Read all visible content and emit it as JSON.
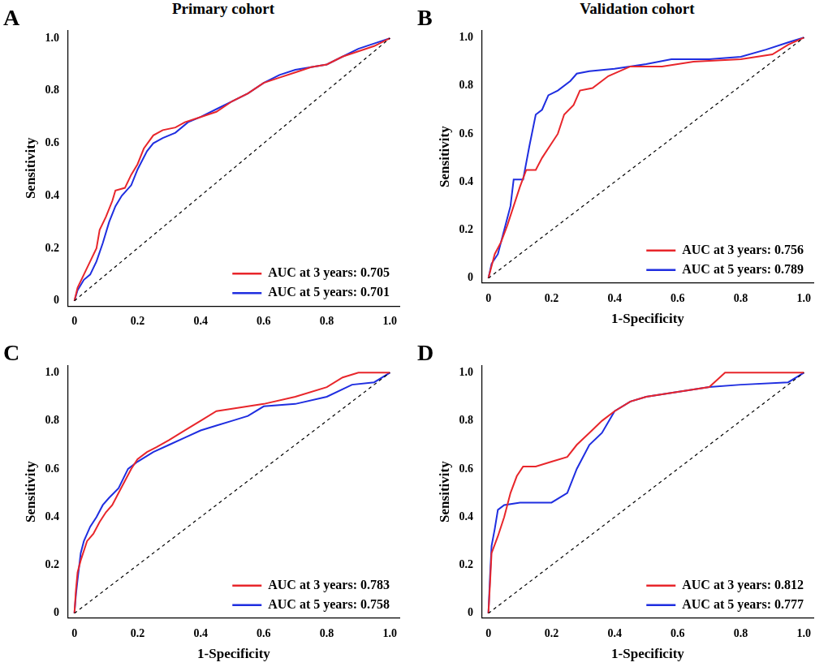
{
  "chart_data": [
    {
      "type": "line",
      "panel": "A",
      "title": "Primary cohort",
      "y_label": "Sensitivity",
      "xlim": [
        -0.02,
        1.03
      ],
      "ylim": [
        -0.02,
        1.03
      ],
      "xticks": [
        0,
        0.2,
        0.4,
        0.6,
        0.8,
        {
          "value": 1,
          "label": "1.0"
        }
      ],
      "yticks": [
        0,
        0.2,
        0.4,
        0.6,
        0.8,
        {
          "value": 1,
          "label": "1.0"
        }
      ],
      "grid": false,
      "legend": "lower right",
      "diagonal": {
        "x": [
          0,
          1
        ],
        "values": [
          0,
          1
        ],
        "color": "#000000",
        "line_style": "dashed"
      },
      "series": [
        {
          "name": "AUC at 3 years: 0.705",
          "color": "#e8262b",
          "x": [
            0,
            0.01,
            0.03,
            0.05,
            0.07,
            0.08,
            0.1,
            0.12,
            0.13,
            0.16,
            0.18,
            0.2,
            0.22,
            0.25,
            0.28,
            0.32,
            0.35,
            0.4,
            0.45,
            0.5,
            0.55,
            0.6,
            0.65,
            0.7,
            0.75,
            0.8,
            0.85,
            0.9,
            0.95,
            1
          ],
          "values": [
            0,
            0.05,
            0.1,
            0.15,
            0.2,
            0.27,
            0.32,
            0.38,
            0.42,
            0.43,
            0.48,
            0.52,
            0.58,
            0.63,
            0.65,
            0.66,
            0.68,
            0.7,
            0.72,
            0.76,
            0.79,
            0.83,
            0.85,
            0.87,
            0.89,
            0.9,
            0.93,
            0.95,
            0.97,
            1
          ]
        },
        {
          "name": "AUC at 5 years: 0.701",
          "color": "#1f2ee0",
          "x": [
            0,
            0.01,
            0.03,
            0.05,
            0.07,
            0.09,
            0.11,
            0.13,
            0.15,
            0.18,
            0.2,
            0.23,
            0.25,
            0.28,
            0.32,
            0.36,
            0.4,
            0.45,
            0.5,
            0.55,
            0.6,
            0.65,
            0.7,
            0.75,
            0.8,
            0.85,
            0.9,
            0.95,
            1
          ],
          "values": [
            0,
            0.04,
            0.08,
            0.1,
            0.15,
            0.22,
            0.3,
            0.36,
            0.4,
            0.44,
            0.5,
            0.57,
            0.6,
            0.62,
            0.64,
            0.68,
            0.7,
            0.73,
            0.76,
            0.79,
            0.83,
            0.86,
            0.88,
            0.89,
            0.9,
            0.93,
            0.96,
            0.98,
            1
          ]
        }
      ]
    },
    {
      "type": "line",
      "panel": "B",
      "title": "Validation cohort",
      "x_label": "1-Specificity",
      "y_label": "Sensitivity",
      "xlim": [
        -0.02,
        1.03
      ],
      "ylim": [
        -0.02,
        1.03
      ],
      "xticks": [
        0,
        0.2,
        0.4,
        0.6,
        0.8,
        {
          "value": 1,
          "label": "1.0"
        }
      ],
      "yticks": [
        0,
        0.2,
        0.4,
        0.6,
        0.8,
        {
          "value": 1,
          "label": "1.0"
        }
      ],
      "grid": false,
      "legend": "lower right",
      "diagonal": {
        "x": [
          0,
          1
        ],
        "values": [
          0,
          1
        ],
        "color": "#000000",
        "line_style": "dashed"
      },
      "series": [
        {
          "name": "AUC at 3 years: 0.756",
          "color": "#e8262b",
          "x": [
            0,
            0.02,
            0.04,
            0.06,
            0.08,
            0.1,
            0.12,
            0.15,
            0.17,
            0.2,
            0.22,
            0.24,
            0.27,
            0.29,
            0.33,
            0.38,
            0.45,
            0.55,
            0.65,
            0.8,
            0.9,
            0.95,
            1
          ],
          "values": [
            0,
            0.1,
            0.15,
            0.22,
            0.3,
            0.38,
            0.45,
            0.45,
            0.5,
            0.56,
            0.6,
            0.68,
            0.72,
            0.78,
            0.79,
            0.84,
            0.88,
            0.88,
            0.9,
            0.91,
            0.93,
            0.97,
            1
          ]
        },
        {
          "name": "AUC at 5 years: 0.789",
          "color": "#1f2ee0",
          "x": [
            0,
            0.01,
            0.03,
            0.05,
            0.07,
            0.08,
            0.11,
            0.13,
            0.15,
            0.17,
            0.19,
            0.22,
            0.26,
            0.28,
            0.32,
            0.4,
            0.5,
            0.58,
            0.7,
            0.8,
            0.88,
            0.95,
            1
          ],
          "values": [
            0,
            0.06,
            0.1,
            0.2,
            0.3,
            0.41,
            0.41,
            0.55,
            0.68,
            0.7,
            0.76,
            0.78,
            0.82,
            0.85,
            0.86,
            0.87,
            0.89,
            0.91,
            0.91,
            0.92,
            0.95,
            0.98,
            1
          ]
        }
      ]
    },
    {
      "type": "line",
      "panel": "C",
      "x_label": "1-Specificity",
      "y_label": "Sensitivity",
      "xlim": [
        -0.02,
        1.03
      ],
      "ylim": [
        -0.02,
        1.03
      ],
      "xticks": [
        0,
        0.2,
        0.4,
        0.6,
        0.8,
        {
          "value": 1,
          "label": "1.0"
        }
      ],
      "yticks": [
        0,
        0.2,
        0.4,
        0.6,
        0.8,
        {
          "value": 1,
          "label": "1.0"
        }
      ],
      "grid": false,
      "legend": "lower right",
      "diagonal": {
        "x": [
          0,
          1
        ],
        "values": [
          0,
          1
        ],
        "color": "#000000",
        "line_style": "dashed"
      },
      "series": [
        {
          "name": "AUC at 3 years: 0.783",
          "color": "#e8262b",
          "x": [
            0,
            0.005,
            0.01,
            0.02,
            0.04,
            0.06,
            0.08,
            0.1,
            0.12,
            0.14,
            0.16,
            0.18,
            0.2,
            0.23,
            0.26,
            0.3,
            0.35,
            0.4,
            0.45,
            0.5,
            0.55,
            0.6,
            0.7,
            0.8,
            0.85,
            0.9,
            1
          ],
          "values": [
            0,
            0.1,
            0.17,
            0.22,
            0.3,
            0.33,
            0.38,
            0.42,
            0.45,
            0.5,
            0.55,
            0.6,
            0.64,
            0.67,
            0.69,
            0.72,
            0.76,
            0.8,
            0.84,
            0.85,
            0.86,
            0.87,
            0.9,
            0.94,
            0.98,
            1,
            1
          ]
        },
        {
          "name": "AUC at 5 years: 0.758",
          "color": "#1f2ee0",
          "x": [
            0,
            0.005,
            0.01,
            0.02,
            0.03,
            0.05,
            0.07,
            0.09,
            0.11,
            0.14,
            0.17,
            0.2,
            0.25,
            0.3,
            0.35,
            0.4,
            0.45,
            0.5,
            0.55,
            0.6,
            0.7,
            0.8,
            0.88,
            0.95,
            1
          ],
          "values": [
            0,
            0.08,
            0.14,
            0.25,
            0.3,
            0.36,
            0.4,
            0.45,
            0.48,
            0.52,
            0.6,
            0.63,
            0.67,
            0.7,
            0.73,
            0.76,
            0.78,
            0.8,
            0.82,
            0.86,
            0.87,
            0.9,
            0.95,
            0.96,
            1
          ]
        }
      ]
    },
    {
      "type": "line",
      "panel": "D",
      "x_label": "1-Specificity",
      "y_label": "Sensitivity",
      "xlim": [
        -0.02,
        1.03
      ],
      "ylim": [
        -0.02,
        1.03
      ],
      "xticks": [
        0,
        0.2,
        0.4,
        0.6,
        0.8,
        {
          "value": 1,
          "label": "1.0"
        }
      ],
      "yticks": [
        0,
        0.2,
        0.4,
        0.6,
        0.8,
        {
          "value": 1,
          "label": "1.0"
        }
      ],
      "grid": false,
      "legend": "lower right",
      "diagonal": {
        "x": [
          0,
          1
        ],
        "values": [
          0,
          1
        ],
        "color": "#000000",
        "line_style": "dashed"
      },
      "series": [
        {
          "name": "AUC at 3 years: 0.812",
          "color": "#e8262b",
          "x": [
            0,
            0.005,
            0.01,
            0.03,
            0.05,
            0.07,
            0.09,
            0.11,
            0.15,
            0.2,
            0.25,
            0.28,
            0.32,
            0.36,
            0.4,
            0.45,
            0.5,
            0.6,
            0.7,
            0.75,
            1
          ],
          "values": [
            0,
            0.12,
            0.25,
            0.32,
            0.4,
            0.5,
            0.57,
            0.61,
            0.61,
            0.63,
            0.65,
            0.7,
            0.75,
            0.8,
            0.84,
            0.88,
            0.9,
            0.92,
            0.94,
            1,
            1
          ]
        },
        {
          "name": "AUC at 5 years: 0.777",
          "color": "#1f2ee0",
          "x": [
            0,
            0.005,
            0.01,
            0.02,
            0.03,
            0.05,
            0.1,
            0.2,
            0.25,
            0.28,
            0.32,
            0.36,
            0.4,
            0.45,
            0.5,
            0.6,
            0.7,
            0.8,
            0.95,
            1
          ],
          "values": [
            0,
            0.15,
            0.28,
            0.35,
            0.43,
            0.45,
            0.46,
            0.46,
            0.5,
            0.6,
            0.7,
            0.75,
            0.84,
            0.88,
            0.9,
            0.92,
            0.94,
            0.95,
            0.96,
            1
          ]
        }
      ]
    }
  ]
}
